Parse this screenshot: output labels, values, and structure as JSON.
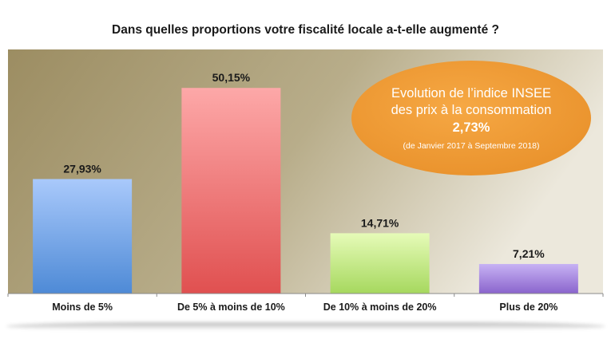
{
  "chart_data": {
    "type": "bar",
    "title": "Dans quelles proportions votre fiscalité locale a-t-elle augmenté ?",
    "categories": [
      "Moins de 5%",
      "De 5% à moins de 10%",
      "De 10% à moins de 20%",
      "Plus de 20%"
    ],
    "values": [
      27.93,
      50.15,
      14.71,
      7.21
    ],
    "value_labels": [
      "27,93%",
      "50,15%",
      "14,71%",
      "7,21%"
    ],
    "xlabel": "",
    "ylabel": "",
    "ylim": [
      0,
      55
    ],
    "grid": false,
    "legend": "none",
    "colors": [
      "#7aaaf0",
      "#f08080",
      "#c8ec8c",
      "#a98ce0"
    ],
    "background": "#a89a70",
    "annotation": {
      "line1": "Evolution de l’indice INSEE",
      "line2": "des prix à la consommation",
      "value": "2,73%",
      "note": "(de Janvier 2017 à Septembre 2018)",
      "color": "#f0a030"
    }
  }
}
